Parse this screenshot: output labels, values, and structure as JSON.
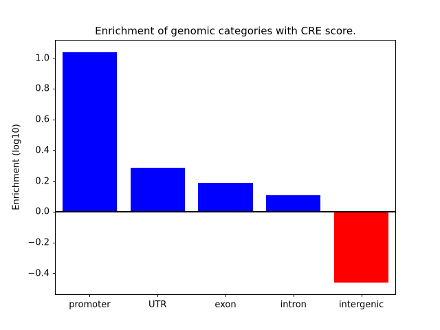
{
  "chart_data": {
    "type": "bar",
    "title": "Enrichment of genomic categories with CRE score.",
    "xlabel": "",
    "ylabel": "Enrichment (log10)",
    "categories": [
      "promoter",
      "UTR",
      "exon",
      "intron",
      "intergenic"
    ],
    "values": [
      1.04,
      0.29,
      0.19,
      0.11,
      -0.46
    ],
    "bar_colors": [
      "#0000ff",
      "#0000ff",
      "#0000ff",
      "#0000ff",
      "#ff0000"
    ],
    "positive_color": "#0000ff",
    "negative_color": "#ff0000",
    "ylim": [
      -0.535,
      1.115
    ],
    "yticks": [
      -0.4,
      -0.2,
      0.0,
      0.2,
      0.4,
      0.6,
      0.8,
      1.0
    ],
    "bar_width_fraction": 0.8,
    "grid": false,
    "zero_line": true,
    "legend": "none"
  }
}
